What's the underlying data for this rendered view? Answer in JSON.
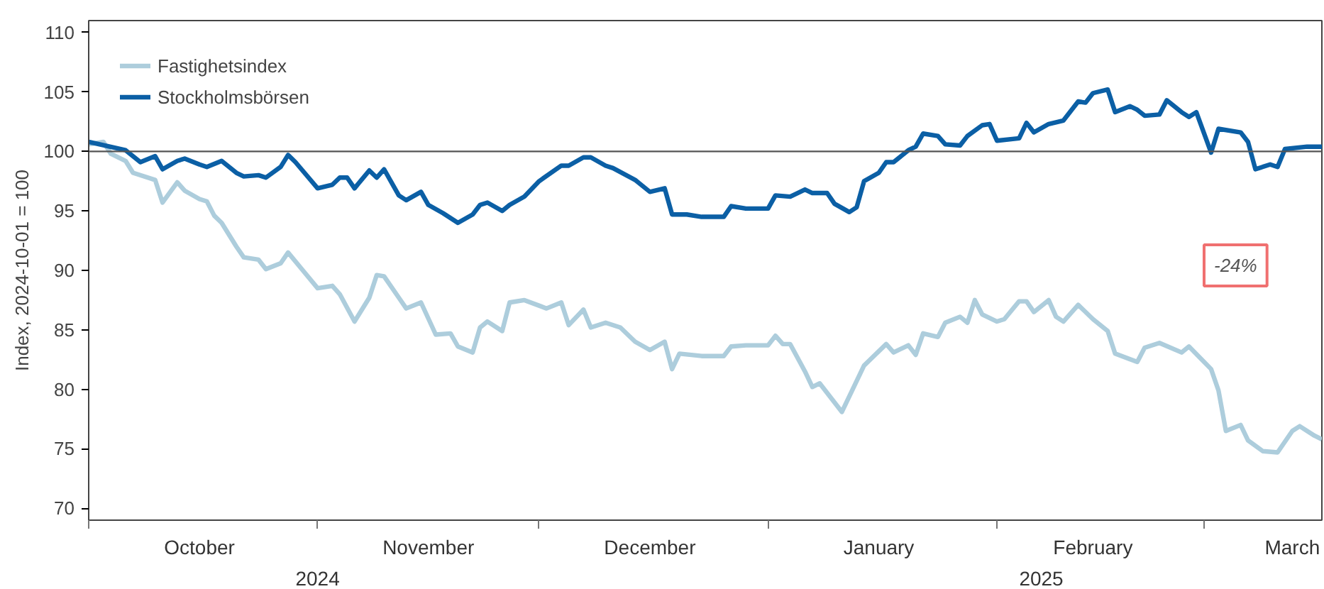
{
  "chart_data": {
    "type": "line",
    "ylabel": "Index, 2024-10-01 = 100",
    "annotations": [
      "-24%"
    ],
    "xlim": [
      "2024-10-01",
      "2025-03-17"
    ],
    "xticks": [
      {
        "value": "2024-10-01",
        "label": null
      },
      {
        "value": "2024-10-16",
        "label": "October"
      },
      {
        "value": "2024-11-01",
        "label": null
      },
      {
        "value": "2024-11-16",
        "label": "November"
      },
      {
        "value": "2024-12-01",
        "label": null
      },
      {
        "value": "2024-12-16",
        "label": "December"
      },
      {
        "value": "2025-01-01",
        "label": null
      },
      {
        "value": "2025-01-16",
        "label": "January"
      },
      {
        "value": "2025-02-01",
        "label": null
      },
      {
        "value": "2025-02-14",
        "label": "February"
      },
      {
        "value": "2025-03-01",
        "label": null
      },
      {
        "value": "2025-03-13",
        "label": "March"
      }
    ],
    "x2lim": [
      "2024-10-01",
      "2025-03-17"
    ],
    "x2ticks": [
      {
        "value": "2024-11-01",
        "label": "2024"
      },
      {
        "value": "2025-02-07",
        "label": "2025"
      }
    ],
    "ylim": [
      69,
      111
    ],
    "yticks": [
      70,
      75,
      80,
      85,
      90,
      95,
      100,
      105,
      110
    ],
    "ref_lines": [
      {
        "axis": "y",
        "value": 100,
        "label": null,
        "color": "#555555"
      }
    ],
    "grid": false,
    "legend": "top left",
    "line_style": "solid",
    "marker": "none",
    "series": [
      {
        "name": "Fastighetsindex",
        "color": "#adcddc",
        "x": [
          "2024-10-01",
          "2024-10-03",
          "2024-10-04",
          "2024-10-06",
          "2024-10-07",
          "2024-10-10",
          "2024-10-11",
          "2024-10-13",
          "2024-10-14",
          "2024-10-16",
          "2024-10-17",
          "2024-10-18",
          "2024-10-19",
          "2024-10-21",
          "2024-10-22",
          "2024-10-24",
          "2024-10-25",
          "2024-10-27",
          "2024-10-28",
          "2024-10-30",
          "2024-11-01",
          "2024-11-03",
          "2024-11-04",
          "2024-11-06",
          "2024-11-08",
          "2024-11-09",
          "2024-11-10",
          "2024-11-12",
          "2024-11-13",
          "2024-11-15",
          "2024-11-17",
          "2024-11-19",
          "2024-11-20",
          "2024-11-22",
          "2024-11-23",
          "2024-11-24",
          "2024-11-26",
          "2024-11-27",
          "2024-11-29",
          "2024-12-02",
          "2024-12-04",
          "2024-12-05",
          "2024-12-07",
          "2024-12-08",
          "2024-12-10",
          "2024-12-12",
          "2024-12-14",
          "2024-12-16",
          "2024-12-18",
          "2024-12-19",
          "2024-12-20",
          "2024-12-23",
          "2024-12-26",
          "2024-12-27",
          "2024-12-29",
          "2025-01-01",
          "2025-01-02",
          "2025-01-03",
          "2025-01-04",
          "2025-01-06",
          "2025-01-07",
          "2025-01-08",
          "2025-01-11",
          "2025-01-14",
          "2025-01-17",
          "2025-01-18",
          "2025-01-20",
          "2025-01-21",
          "2025-01-22",
          "2025-01-24",
          "2025-01-25",
          "2025-01-27",
          "2025-01-28",
          "2025-01-29",
          "2025-01-30",
          "2025-02-01",
          "2025-02-02",
          "2025-02-04",
          "2025-02-05",
          "2025-02-06",
          "2025-02-08",
          "2025-02-09",
          "2025-02-10",
          "2025-02-12",
          "2025-02-14",
          "2025-02-16",
          "2025-02-17",
          "2025-02-20",
          "2025-02-21",
          "2025-02-23",
          "2025-02-26",
          "2025-02-27",
          "2025-03-02",
          "2025-03-03",
          "2025-03-04",
          "2025-03-06",
          "2025-03-07",
          "2025-03-09",
          "2025-03-11",
          "2025-03-13",
          "2025-03-14",
          "2025-03-16",
          "2025-03-17"
        ],
        "values": [
          100.6,
          100.8,
          99.8,
          99.2,
          98.2,
          97.6,
          95.7,
          97.4,
          96.7,
          96.0,
          95.8,
          94.6,
          94.0,
          92.0,
          91.1,
          90.9,
          90.1,
          90.6,
          91.5,
          90.0,
          88.5,
          88.7,
          88.0,
          85.7,
          87.7,
          89.6,
          89.5,
          87.7,
          86.8,
          87.3,
          84.6,
          84.7,
          83.6,
          83.1,
          85.2,
          85.7,
          84.9,
          87.3,
          87.5,
          86.8,
          87.3,
          85.4,
          86.7,
          85.2,
          85.6,
          85.2,
          84.0,
          83.3,
          84.0,
          81.7,
          83.0,
          82.8,
          82.8,
          83.6,
          83.7,
          83.7,
          84.5,
          83.8,
          83.8,
          81.5,
          80.2,
          80.5,
          78.1,
          82.0,
          83.8,
          83.1,
          83.7,
          82.9,
          84.7,
          84.4,
          85.6,
          86.1,
          85.6,
          87.5,
          86.3,
          85.7,
          85.9,
          87.4,
          87.4,
          86.5,
          87.5,
          86.1,
          85.7,
          87.1,
          85.9,
          84.9,
          83.0,
          82.3,
          83.5,
          83.9,
          83.1,
          83.6,
          81.7,
          79.9,
          76.5,
          77.0,
          75.7,
          74.8,
          74.7,
          76.5,
          76.9,
          76.1,
          75.8
        ]
      },
      {
        "name": "Stockholmsbörsen",
        "color": "#0b5fa5",
        "x": [
          "2024-10-01",
          "2024-10-06",
          "2024-10-08",
          "2024-10-10",
          "2024-10-11",
          "2024-10-13",
          "2024-10-14",
          "2024-10-16",
          "2024-10-17",
          "2024-10-19",
          "2024-10-21",
          "2024-10-22",
          "2024-10-24",
          "2024-10-25",
          "2024-10-27",
          "2024-10-28",
          "2024-10-29",
          "2024-11-01",
          "2024-11-03",
          "2024-11-04",
          "2024-11-05",
          "2024-11-06",
          "2024-11-08",
          "2024-11-09",
          "2024-11-10",
          "2024-11-12",
          "2024-11-13",
          "2024-11-15",
          "2024-11-16",
          "2024-11-18",
          "2024-11-20",
          "2024-11-22",
          "2024-11-23",
          "2024-11-24",
          "2024-11-26",
          "2024-11-27",
          "2024-11-29",
          "2024-12-01",
          "2024-12-04",
          "2024-12-05",
          "2024-12-07",
          "2024-12-08",
          "2024-12-10",
          "2024-12-11",
          "2024-12-14",
          "2024-12-16",
          "2024-12-18",
          "2024-12-19",
          "2024-12-21",
          "2024-12-23",
          "2024-12-26",
          "2024-12-27",
          "2024-12-29",
          "2025-01-01",
          "2025-01-02",
          "2025-01-04",
          "2025-01-06",
          "2025-01-07",
          "2025-01-09",
          "2025-01-10",
          "2025-01-12",
          "2025-01-13",
          "2025-01-14",
          "2025-01-16",
          "2025-01-17",
          "2025-01-18",
          "2025-01-20",
          "2025-01-21",
          "2025-01-22",
          "2025-01-24",
          "2025-01-25",
          "2025-01-27",
          "2025-01-28",
          "2025-01-30",
          "2025-01-31",
          "2025-02-01",
          "2025-02-04",
          "2025-02-05",
          "2025-02-06",
          "2025-02-08",
          "2025-02-10",
          "2025-02-12",
          "2025-02-13",
          "2025-02-14",
          "2025-02-16",
          "2025-02-17",
          "2025-02-19",
          "2025-02-20",
          "2025-02-21",
          "2025-02-23",
          "2025-02-24",
          "2025-02-26",
          "2025-02-27",
          "2025-02-28",
          "2025-03-02",
          "2025-03-03",
          "2025-03-06",
          "2025-03-07",
          "2025-03-08",
          "2025-03-10",
          "2025-03-11",
          "2025-03-12",
          "2025-03-15",
          "2025-03-17"
        ],
        "values": [
          100.8,
          100.1,
          99.1,
          99.6,
          98.5,
          99.2,
          99.4,
          98.9,
          98.7,
          99.2,
          98.2,
          97.9,
          98.0,
          97.8,
          98.7,
          99.7,
          99.1,
          96.9,
          97.2,
          97.8,
          97.8,
          96.9,
          98.4,
          97.8,
          98.5,
          96.3,
          95.9,
          96.6,
          95.5,
          94.8,
          94.0,
          94.7,
          95.5,
          95.7,
          95.0,
          95.5,
          96.2,
          97.5,
          98.8,
          98.8,
          99.5,
          99.5,
          98.8,
          98.6,
          97.6,
          96.6,
          96.9,
          94.7,
          94.7,
          94.5,
          94.5,
          95.4,
          95.2,
          95.2,
          96.3,
          96.2,
          96.8,
          96.5,
          96.5,
          95.6,
          94.9,
          95.3,
          97.5,
          98.2,
          99.1,
          99.1,
          100.1,
          100.4,
          101.5,
          101.3,
          100.6,
          100.5,
          101.3,
          102.2,
          102.3,
          100.9,
          101.1,
          102.4,
          101.6,
          102.3,
          102.6,
          104.2,
          104.1,
          104.9,
          105.2,
          103.3,
          103.8,
          103.5,
          103.0,
          103.1,
          104.3,
          103.3,
          102.9,
          103.3,
          99.9,
          101.9,
          101.6,
          100.8,
          98.5,
          98.9,
          98.7,
          100.2,
          100.4,
          100.4
        ]
      }
    ]
  }
}
